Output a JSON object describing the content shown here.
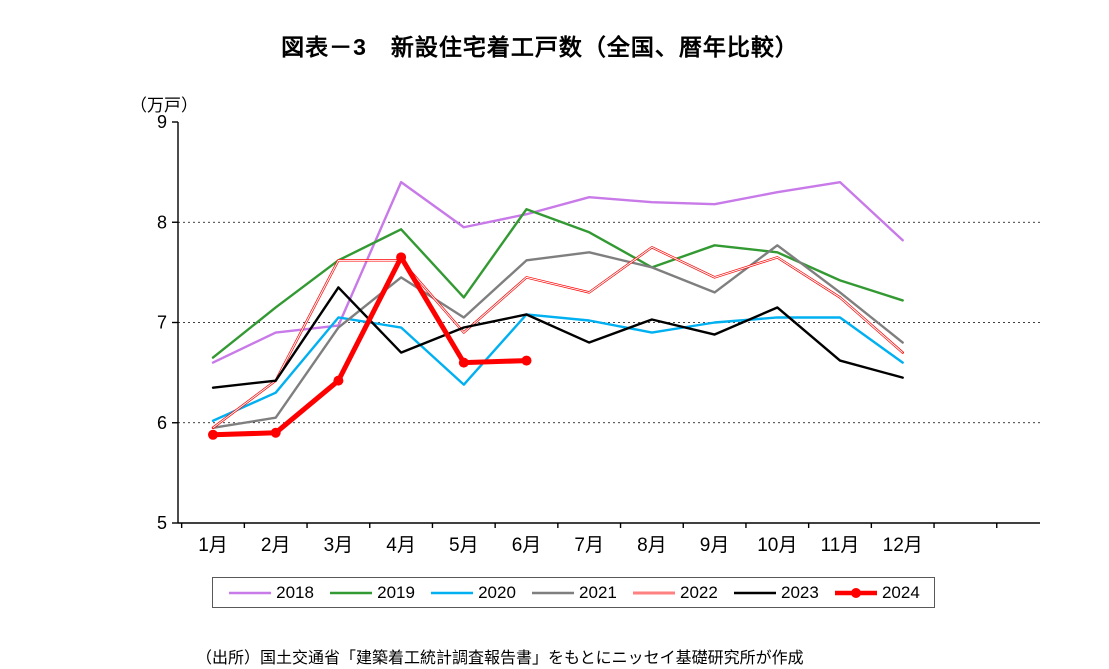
{
  "title": "図表－3　新設住宅着工戸数（全国、暦年比較）",
  "y_unit_label": "（万戸）",
  "source_note": "（出所）国土交通省「建築着工統計調査報告書」をもとにニッセイ基礎研究所が作成",
  "chart_data": {
    "type": "line",
    "categories": [
      "1月",
      "2月",
      "3月",
      "4月",
      "5月",
      "6月",
      "7月",
      "8月",
      "9月",
      "10月",
      "11月",
      "12月"
    ],
    "ylim": [
      5,
      9
    ],
    "yticks": [
      5,
      6,
      7,
      8,
      9
    ],
    "gridlines": [
      6,
      7,
      8
    ],
    "grid": true,
    "legend_position": "bottom",
    "series": [
      {
        "name": "2018",
        "color": "#C87AE8",
        "width": 2.4,
        "values": [
          6.6,
          6.9,
          6.97,
          8.4,
          7.95,
          8.08,
          8.25,
          8.2,
          8.18,
          8.3,
          8.4,
          7.82
        ]
      },
      {
        "name": "2019",
        "color": "#339933",
        "width": 2.4,
        "values": [
          6.65,
          7.15,
          7.62,
          7.93,
          7.25,
          8.13,
          7.9,
          7.55,
          7.77,
          7.7,
          7.42,
          7.22
        ]
      },
      {
        "name": "2020",
        "color": "#00B0F0",
        "width": 2.4,
        "values": [
          6.02,
          6.3,
          7.05,
          6.95,
          6.38,
          7.08,
          7.02,
          6.9,
          7.0,
          7.05,
          7.05,
          6.6
        ]
      },
      {
        "name": "2021",
        "color": "#7F7F7F",
        "width": 2.4,
        "values": [
          5.95,
          6.05,
          6.95,
          7.45,
          7.05,
          7.62,
          7.7,
          7.55,
          7.3,
          7.77,
          7.3,
          6.8
        ]
      },
      {
        "name": "2022",
        "color": "#FF0000",
        "width": 2.4,
        "line_style": "double",
        "values": [
          5.95,
          6.42,
          7.62,
          7.62,
          6.9,
          7.45,
          7.3,
          7.75,
          7.45,
          7.65,
          7.25,
          6.7
        ]
      },
      {
        "name": "2023",
        "color": "#000000",
        "width": 2.4,
        "values": [
          6.35,
          6.42,
          7.35,
          6.7,
          6.95,
          7.08,
          6.8,
          7.03,
          6.88,
          7.15,
          6.62,
          6.45
        ]
      },
      {
        "name": "2024",
        "color": "#FF0000",
        "width": 5,
        "marker": true,
        "values": [
          5.88,
          5.9,
          6.42,
          7.65,
          6.6,
          6.62,
          null,
          null,
          null,
          null,
          null,
          null
        ]
      }
    ]
  }
}
